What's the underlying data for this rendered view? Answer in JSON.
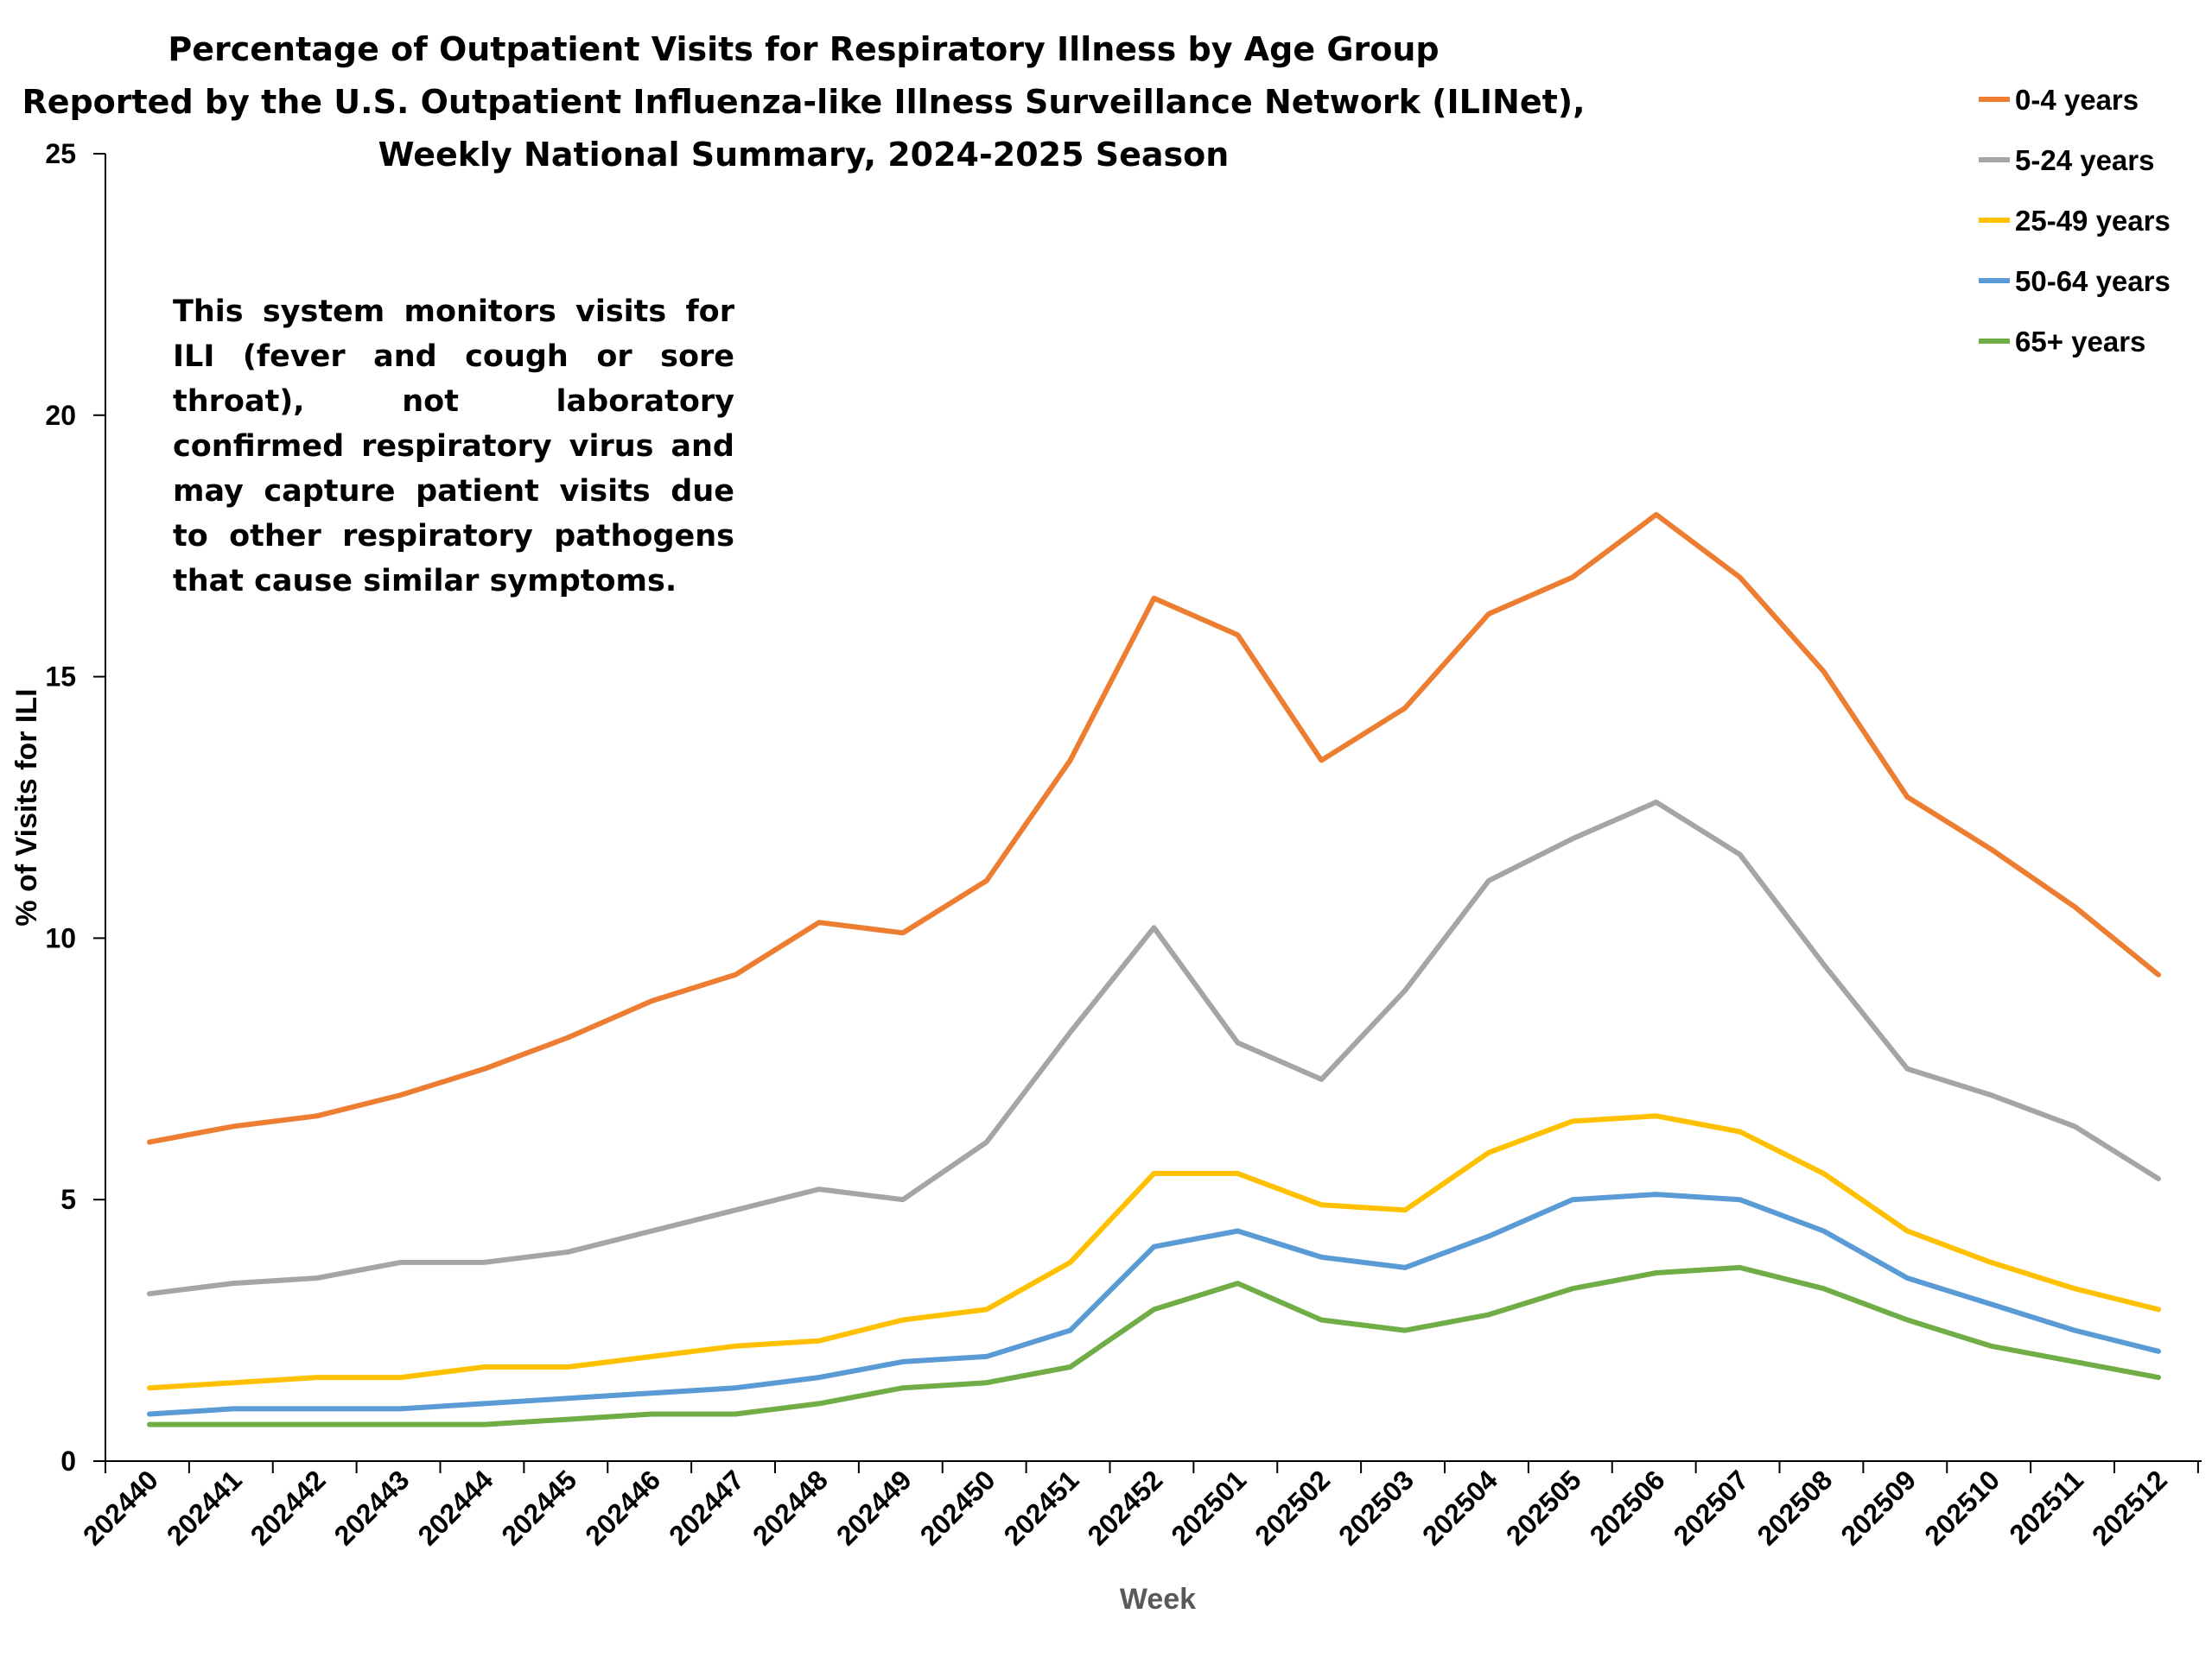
{
  "chart_data": {
    "type": "line",
    "title": [
      "Percentage of Outpatient Visits for Respiratory Illness by Age Group",
      "Reported by the U.S. Outpatient Influenza-like Illness Surveillance Network (ILINet),",
      "Weekly National Summary, 2024-2025 Season"
    ],
    "xlabel": "Week",
    "ylabel": "% of Visits for ILI",
    "ylim": [
      0,
      25
    ],
    "yticks": [
      "0",
      "5",
      "10",
      "15",
      "20",
      "25"
    ],
    "categories": [
      "202440",
      "202441",
      "202442",
      "202443",
      "202444",
      "202445",
      "202446",
      "202447",
      "202448",
      "202449",
      "202450",
      "202451",
      "202452",
      "202501",
      "202502",
      "202503",
      "202504",
      "202505",
      "202506",
      "202507",
      "202508",
      "202509",
      "202510",
      "202511",
      "202512"
    ],
    "legend_position": "top-right",
    "annotation": "This system monitors visits for ILI (fever and cough or sore throat), not laboratory confirmed respiratory virus and may capture patient visits due to other respiratory pathogens that cause similar symptoms.",
    "series": [
      {
        "name": "0-4 years",
        "color": "#ED7D31",
        "values": [
          6.1,
          6.4,
          6.6,
          7.0,
          7.5,
          8.1,
          8.8,
          9.3,
          10.3,
          10.1,
          11.1,
          13.4,
          16.5,
          15.8,
          13.4,
          14.4,
          16.2,
          16.9,
          18.1,
          16.9,
          15.1,
          12.7,
          11.7,
          10.6,
          9.3
        ]
      },
      {
        "name": "5-24 years",
        "color": "#A5A5A5",
        "values": [
          3.2,
          3.4,
          3.5,
          3.8,
          3.8,
          4.0,
          4.4,
          4.8,
          5.2,
          5.0,
          6.1,
          8.2,
          10.2,
          8.0,
          7.3,
          9.0,
          11.1,
          11.9,
          12.6,
          11.6,
          9.5,
          7.5,
          7.0,
          6.4,
          5.4
        ]
      },
      {
        "name": "25-49 years",
        "color": "#FFC000",
        "values": [
          1.4,
          1.5,
          1.6,
          1.6,
          1.8,
          1.8,
          2.0,
          2.2,
          2.3,
          2.7,
          2.9,
          3.8,
          5.5,
          5.5,
          4.9,
          4.8,
          5.9,
          6.5,
          6.6,
          6.3,
          5.5,
          4.4,
          3.8,
          3.3,
          2.9
        ]
      },
      {
        "name": "50-64 years",
        "color": "#5B9BD5",
        "values": [
          0.9,
          1.0,
          1.0,
          1.0,
          1.1,
          1.2,
          1.3,
          1.4,
          1.6,
          1.9,
          2.0,
          2.5,
          4.1,
          4.4,
          3.9,
          3.7,
          4.3,
          5.0,
          5.1,
          5.0,
          4.4,
          3.5,
          3.0,
          2.5,
          2.1
        ]
      },
      {
        "name": "65+ years",
        "color": "#70AD47",
        "values": [
          0.7,
          0.7,
          0.7,
          0.7,
          0.7,
          0.8,
          0.9,
          0.9,
          1.1,
          1.4,
          1.5,
          1.8,
          2.9,
          3.4,
          2.7,
          2.5,
          2.8,
          3.3,
          3.6,
          3.7,
          3.3,
          2.7,
          2.2,
          1.9,
          1.6
        ]
      }
    ]
  }
}
